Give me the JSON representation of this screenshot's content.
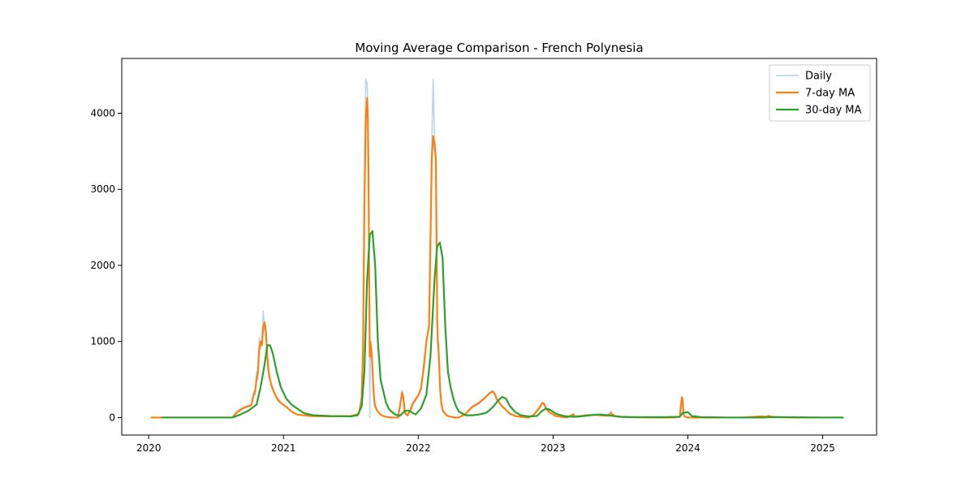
{
  "chart_data": {
    "type": "line",
    "title": "Moving Average Comparison - French Polynesia",
    "xlabel": "",
    "ylabel": "",
    "xlim": [
      2019.8,
      2025.4
    ],
    "ylim": [
      -230,
      4720
    ],
    "x_ticks": [
      2020,
      2021,
      2022,
      2023,
      2024,
      2025
    ],
    "x_tick_labels": [
      "2020",
      "2021",
      "2022",
      "2023",
      "2024",
      "2025"
    ],
    "y_ticks": [
      0,
      1000,
      2000,
      3000,
      4000
    ],
    "y_tick_labels": [
      "0",
      "1000",
      "2000",
      "3000",
      "4000"
    ],
    "grid": false,
    "legend_position": "upper right",
    "series": [
      {
        "name": "Daily",
        "color": "#1f77b4",
        "opacity": 0.3,
        "x": [
          2020.02,
          2020.1,
          2020.3,
          2020.5,
          2020.62,
          2020.65,
          2020.68,
          2020.71,
          2020.74,
          2020.76,
          2020.78,
          2020.79,
          2020.8,
          2020.81,
          2020.82,
          2020.83,
          2020.84,
          2020.85,
          2020.86,
          2020.87,
          2020.88,
          2020.89,
          2020.9,
          2020.91,
          2020.93,
          2020.95,
          2020.97,
          2020.99,
          2021.02,
          2021.06,
          2021.1,
          2021.2,
          2021.35,
          2021.5,
          2021.56,
          2021.58,
          2021.59,
          2021.6,
          2021.61,
          2021.62,
          2021.625,
          2021.63,
          2021.635,
          2021.64,
          2021.645,
          2021.65,
          2021.655,
          2021.66,
          2021.665,
          2021.67,
          2021.675,
          2021.68,
          2021.69,
          2021.7,
          2021.71,
          2021.72,
          2021.74,
          2021.76,
          2021.8,
          2021.85,
          2021.88,
          2021.89,
          2021.9,
          2021.91,
          2021.92,
          2021.94,
          2021.96,
          2021.98,
          2022.0,
          2022.02,
          2022.04,
          2022.06,
          2022.08,
          2022.1,
          2022.11,
          2022.12,
          2022.13,
          2022.135,
          2022.14,
          2022.145,
          2022.15,
          2022.155,
          2022.16,
          2022.165,
          2022.17,
          2022.175,
          2022.18,
          2022.19,
          2022.2,
          2022.21,
          2022.22,
          2022.24,
          2022.26,
          2022.28,
          2022.3,
          2022.35,
          2022.4,
          2022.45,
          2022.5,
          2022.53,
          2022.55,
          2022.56,
          2022.57,
          2022.58,
          2022.6,
          2022.62,
          2022.65,
          2022.68,
          2022.72,
          2022.76,
          2022.82,
          2022.86,
          2022.9,
          2022.92,
          2022.93,
          2022.95,
          2022.98,
          2023.02,
          2023.1,
          2023.15,
          2023.16,
          2023.2,
          2023.25,
          2023.3,
          2023.35,
          2023.4,
          2023.42,
          2023.43,
          2023.44,
          2023.46,
          2023.5,
          2023.6,
          2023.8,
          2023.9,
          2023.94,
          2023.95,
          2023.955,
          2023.96,
          2023.965,
          2023.97,
          2023.98,
          2024.0,
          2024.05,
          2024.2,
          2024.4,
          2024.55,
          2024.58,
          2024.6,
          2024.62,
          2024.7,
          2024.8,
          2025.0,
          2025.15
        ],
        "y": [
          0,
          0,
          0,
          0,
          0,
          70,
          120,
          140,
          160,
          170,
          350,
          300,
          600,
          500,
          1050,
          900,
          1000,
          1400,
          1150,
          1200,
          700,
          550,
          500,
          450,
          350,
          250,
          200,
          180,
          150,
          80,
          40,
          20,
          15,
          20,
          50,
          300,
          1000,
          3000,
          4450,
          4400,
          4100,
          3400,
          2000,
          0,
          1000,
          800,
          900,
          700,
          500,
          300,
          200,
          150,
          120,
          80,
          60,
          40,
          20,
          10,
          0,
          0,
          360,
          200,
          50,
          40,
          30,
          100,
          200,
          250,
          300,
          400,
          700,
          1000,
          1200,
          3600,
          4450,
          3700,
          3500,
          2500,
          1200,
          900,
          1000,
          700,
          400,
          300,
          200,
          150,
          100,
          70,
          50,
          30,
          20,
          10,
          5,
          0,
          0,
          50,
          150,
          200,
          280,
          330,
          350,
          330,
          300,
          250,
          200,
          150,
          100,
          50,
          20,
          10,
          0,
          50,
          150,
          200,
          180,
          100,
          60,
          20,
          0,
          50,
          10,
          20,
          30,
          40,
          30,
          20,
          50,
          80,
          40,
          20,
          10,
          5,
          0,
          0,
          10,
          200,
          280,
          250,
          100,
          20,
          10,
          0,
          0,
          0,
          0,
          20,
          10,
          30,
          10,
          5,
          0,
          0,
          0
        ]
      },
      {
        "name": "7-day MA",
        "color": "#ff7f0e",
        "opacity": 1,
        "x": [
          2020.02,
          2020.1,
          2020.3,
          2020.5,
          2020.62,
          2020.65,
          2020.68,
          2020.71,
          2020.74,
          2020.76,
          2020.78,
          2020.79,
          2020.8,
          2020.81,
          2020.82,
          2020.83,
          2020.84,
          2020.85,
          2020.86,
          2020.87,
          2020.88,
          2020.89,
          2020.9,
          2020.91,
          2020.93,
          2020.95,
          2020.97,
          2020.99,
          2021.02,
          2021.06,
          2021.1,
          2021.2,
          2021.35,
          2021.5,
          2021.56,
          2021.58,
          2021.59,
          2021.6,
          2021.61,
          2021.62,
          2021.625,
          2021.63,
          2021.635,
          2021.64,
          2021.645,
          2021.65,
          2021.655,
          2021.66,
          2021.665,
          2021.67,
          2021.675,
          2021.68,
          2021.69,
          2021.7,
          2021.71,
          2021.72,
          2021.74,
          2021.76,
          2021.8,
          2021.85,
          2021.88,
          2021.89,
          2021.9,
          2021.91,
          2021.92,
          2021.94,
          2021.96,
          2021.98,
          2022.0,
          2022.02,
          2022.04,
          2022.06,
          2022.08,
          2022.1,
          2022.11,
          2022.12,
          2022.13,
          2022.135,
          2022.14,
          2022.145,
          2022.15,
          2022.155,
          2022.16,
          2022.165,
          2022.17,
          2022.175,
          2022.18,
          2022.19,
          2022.2,
          2022.21,
          2022.22,
          2022.24,
          2022.26,
          2022.28,
          2022.3,
          2022.35,
          2022.4,
          2022.45,
          2022.5,
          2022.53,
          2022.55,
          2022.56,
          2022.57,
          2022.58,
          2022.6,
          2022.62,
          2022.65,
          2022.68,
          2022.72,
          2022.76,
          2022.82,
          2022.86,
          2022.9,
          2022.92,
          2022.93,
          2022.95,
          2022.98,
          2023.02,
          2023.1,
          2023.15,
          2023.16,
          2023.2,
          2023.25,
          2023.3,
          2023.35,
          2023.4,
          2023.42,
          2023.43,
          2023.44,
          2023.46,
          2023.5,
          2023.6,
          2023.8,
          2023.9,
          2023.94,
          2023.95,
          2023.955,
          2023.96,
          2023.965,
          2023.97,
          2023.98,
          2024.0,
          2024.05,
          2024.2,
          2024.4,
          2024.55,
          2024.58,
          2024.6,
          2024.62,
          2024.7,
          2024.8,
          2025.0,
          2025.15
        ],
        "y": [
          0,
          0,
          0,
          0,
          0,
          60,
          100,
          130,
          150,
          160,
          300,
          350,
          500,
          600,
          900,
          1000,
          950,
          1200,
          1250,
          1100,
          800,
          600,
          500,
          420,
          330,
          260,
          210,
          180,
          140,
          80,
          40,
          20,
          15,
          20,
          50,
          250,
          900,
          2800,
          3900,
          4200,
          4000,
          3300,
          2000,
          800,
          1000,
          900,
          800,
          650,
          450,
          300,
          200,
          150,
          110,
          80,
          60,
          40,
          20,
          10,
          0,
          0,
          330,
          250,
          80,
          40,
          30,
          90,
          180,
          240,
          290,
          380,
          650,
          1000,
          1200,
          3400,
          3700,
          3600,
          3400,
          2500,
          1300,
          1000,
          900,
          700,
          450,
          300,
          200,
          150,
          100,
          70,
          50,
          30,
          20,
          10,
          5,
          0,
          0,
          50,
          140,
          190,
          270,
          320,
          345,
          330,
          300,
          250,
          200,
          150,
          100,
          50,
          20,
          10,
          0,
          40,
          130,
          190,
          190,
          110,
          60,
          20,
          0,
          40,
          15,
          20,
          30,
          35,
          30,
          25,
          45,
          60,
          40,
          20,
          10,
          5,
          0,
          0,
          10,
          180,
          260,
          250,
          120,
          30,
          10,
          0,
          0,
          0,
          0,
          15,
          12,
          20,
          10,
          5,
          0,
          0,
          0
        ]
      },
      {
        "name": "30-day MA",
        "color": "#2ca02c",
        "opacity": 1,
        "x": [
          2020.1,
          2020.3,
          2020.5,
          2020.62,
          2020.68,
          2020.74,
          2020.77,
          2020.8,
          2020.83,
          2020.86,
          2020.88,
          2020.9,
          2020.92,
          2020.95,
          2020.98,
          2021.02,
          2021.06,
          2021.1,
          2021.15,
          2021.22,
          2021.35,
          2021.5,
          2021.55,
          2021.58,
          2021.6,
          2021.62,
          2021.64,
          2021.66,
          2021.68,
          2021.7,
          2021.72,
          2021.74,
          2021.76,
          2021.78,
          2021.8,
          2021.83,
          2021.86,
          2021.88,
          2021.9,
          2021.93,
          2021.96,
          2021.98,
          2022.02,
          2022.06,
          2022.09,
          2022.12,
          2022.14,
          2022.16,
          2022.18,
          2022.2,
          2022.22,
          2022.24,
          2022.26,
          2022.28,
          2022.3,
          2022.35,
          2022.4,
          2022.45,
          2022.5,
          2022.53,
          2022.56,
          2022.59,
          2022.62,
          2022.65,
          2022.68,
          2022.72,
          2022.76,
          2022.82,
          2022.88,
          2022.92,
          2022.95,
          2022.98,
          2023.02,
          2023.08,
          2023.15,
          2023.2,
          2023.25,
          2023.3,
          2023.35,
          2023.4,
          2023.45,
          2023.5,
          2023.6,
          2023.8,
          2023.94,
          2023.96,
          2024.0,
          2024.03,
          2024.1,
          2024.3,
          2024.55,
          2024.62,
          2024.7,
          2025.0,
          2025.15
        ],
        "y": [
          0,
          0,
          0,
          0,
          40,
          90,
          130,
          170,
          400,
          700,
          950,
          950,
          850,
          600,
          400,
          250,
          170,
          120,
          60,
          30,
          20,
          15,
          30,
          150,
          600,
          1800,
          2400,
          2450,
          2000,
          1000,
          500,
          350,
          200,
          120,
          80,
          40,
          20,
          50,
          90,
          90,
          60,
          40,
          120,
          300,
          800,
          1800,
          2250,
          2300,
          2100,
          1200,
          600,
          400,
          250,
          150,
          80,
          30,
          30,
          40,
          60,
          100,
          150,
          220,
          270,
          250,
          150,
          70,
          30,
          15,
          20,
          90,
          120,
          100,
          50,
          20,
          10,
          15,
          25,
          35,
          40,
          30,
          20,
          10,
          5,
          5,
          10,
          60,
          70,
          20,
          5,
          0,
          0,
          5,
          5,
          0,
          0
        ]
      }
    ]
  }
}
